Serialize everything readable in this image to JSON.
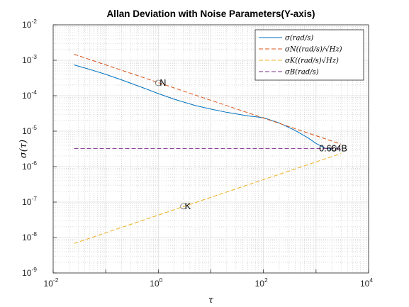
{
  "chart_data": {
    "type": "line",
    "title": "Allan Deviation with Noise Parameters(Y-axis)",
    "xlabel": "τ",
    "ylabel": "σ(τ)",
    "x_scale": "log",
    "y_scale": "log",
    "xlim": [
      0.01,
      10000
    ],
    "ylim": [
      1e-09,
      0.01
    ],
    "grid": true,
    "minor_grid": true,
    "legend_position": "top-right",
    "x_ticks": [
      {
        "value": 0.01,
        "base": "10",
        "exp": "-2"
      },
      {
        "value": 1,
        "base": "10",
        "exp": "0"
      },
      {
        "value": 100,
        "base": "10",
        "exp": "2"
      },
      {
        "value": 10000,
        "base": "10",
        "exp": "4"
      }
    ],
    "y_ticks": [
      {
        "value": 1e-09,
        "base": "10",
        "exp": "-9"
      },
      {
        "value": 1e-08,
        "base": "10",
        "exp": "-8"
      },
      {
        "value": 1e-07,
        "base": "10",
        "exp": "-7"
      },
      {
        "value": 1e-06,
        "base": "10",
        "exp": "-6"
      },
      {
        "value": 1e-05,
        "base": "10",
        "exp": "-5"
      },
      {
        "value": 0.0001,
        "base": "10",
        "exp": "-4"
      },
      {
        "value": 0.001,
        "base": "10",
        "exp": "-3"
      },
      {
        "value": 0.01,
        "base": "10",
        "exp": "-2"
      }
    ],
    "series": [
      {
        "name": "σ(rad/s)",
        "color": "#0072bd",
        "dash": "solid",
        "x": [
          0.025,
          0.05,
          0.1,
          0.2,
          0.5,
          1,
          2,
          5,
          10,
          20,
          50,
          100,
          200,
          400,
          700,
          1000,
          1500,
          2000
        ],
        "y": [
          0.00074,
          0.00055,
          0.0004,
          0.00028,
          0.00017,
          0.000115,
          8e-05,
          5.3e-05,
          4.2e-05,
          3.4e-05,
          2.7e-05,
          2.4e-05,
          1.7e-05,
          1.05e-05,
          6.5e-06,
          4.5e-06,
          3.3e-06,
          3.1e-06
        ]
      },
      {
        "name": "σN((rad/s)/√Hz)",
        "color": "#d95319",
        "dash": "dashed",
        "x": [
          0.025,
          3000
        ],
        "y": [
          0.00148,
          4.3e-06
        ]
      },
      {
        "name": "σK((rad/s)√Hz)",
        "color": "#edb120",
        "dash": "dashed",
        "x": [
          0.025,
          3000
        ],
        "y": [
          6.8e-09,
          2.35e-06
        ]
      },
      {
        "name": "σB(rad/s)",
        "color": "#7e2f8e",
        "dash": "dashed",
        "x": [
          0.025,
          3000
        ],
        "y": [
          3.25e-06,
          3.25e-06
        ]
      }
    ],
    "annotations": [
      {
        "text": "N",
        "x": 1,
        "y": 0.00023
      },
      {
        "text": "K",
        "x": 3,
        "y": 7.6e-08
      },
      {
        "text": "0.664B",
        "x": 2200,
        "y": 3.25e-06
      }
    ]
  }
}
